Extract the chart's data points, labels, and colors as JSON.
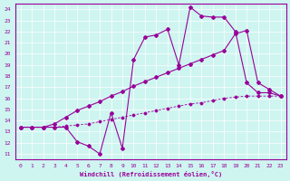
{
  "xlabel": "Windchill (Refroidissement éolien,°C)",
  "bg_color": "#cef5f0",
  "line_color": "#990099",
  "xlim": [
    -0.5,
    23.5
  ],
  "ylim": [
    10.5,
    24.5
  ],
  "xticks": [
    0,
    1,
    2,
    3,
    4,
    5,
    6,
    7,
    8,
    9,
    10,
    11,
    12,
    13,
    14,
    15,
    16,
    17,
    18,
    19,
    20,
    21,
    22,
    23
  ],
  "yticks": [
    11,
    12,
    13,
    14,
    15,
    16,
    17,
    18,
    19,
    20,
    21,
    22,
    23,
    24
  ],
  "series_upper_x": [
    0,
    1,
    2,
    3,
    4,
    5,
    6,
    7,
    8,
    9,
    10,
    11,
    12,
    13,
    14,
    15,
    16,
    17,
    18,
    19,
    20,
    21,
    22,
    23
  ],
  "series_upper_y": [
    13.4,
    13.4,
    13.4,
    13.4,
    13.4,
    12.1,
    11.7,
    11.0,
    14.7,
    11.5,
    19.5,
    21.5,
    21.7,
    22.2,
    19.0,
    24.2,
    23.4,
    23.3,
    23.3,
    22.0,
    17.4,
    16.5,
    16.5,
    16.2
  ],
  "series_mid_x": [
    0,
    1,
    2,
    3,
    4,
    5,
    6,
    7,
    8,
    9,
    10,
    11,
    12,
    13,
    14,
    15,
    16,
    17,
    18,
    19,
    20,
    21,
    22,
    23
  ],
  "series_mid_y": [
    13.4,
    13.4,
    13.4,
    13.7,
    14.3,
    14.9,
    15.3,
    15.7,
    16.2,
    16.6,
    17.1,
    17.5,
    17.9,
    18.3,
    18.7,
    19.1,
    19.5,
    19.9,
    20.3,
    21.8,
    22.1,
    17.4,
    16.8,
    16.2
  ],
  "series_low_x": [
    0,
    1,
    2,
    3,
    4,
    5,
    6,
    7,
    8,
    9,
    10,
    11,
    12,
    13,
    14,
    15,
    16,
    17,
    18,
    19,
    20,
    21,
    22,
    23
  ],
  "series_low_y": [
    13.4,
    13.4,
    13.4,
    13.4,
    13.5,
    13.6,
    13.7,
    13.9,
    14.1,
    14.3,
    14.5,
    14.7,
    14.9,
    15.1,
    15.3,
    15.5,
    15.6,
    15.8,
    16.0,
    16.1,
    16.2,
    16.2,
    16.2,
    16.2
  ]
}
